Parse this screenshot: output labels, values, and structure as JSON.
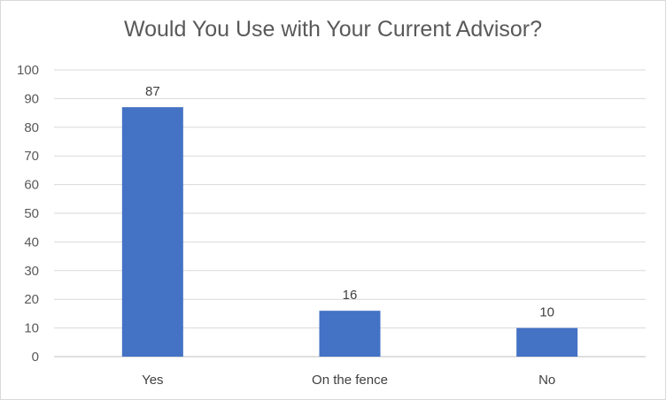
{
  "chart_data": {
    "type": "bar",
    "title": "Would You Use with Your Current Advisor?",
    "categories": [
      "Yes",
      "On the fence",
      "No"
    ],
    "values": [
      87,
      16,
      10
    ],
    "data_labels": [
      "87",
      "16",
      "10"
    ],
    "xlabel": "",
    "ylabel": "",
    "ylim": [
      0,
      100
    ],
    "ytick_step": 10,
    "grid": true,
    "legend": "none",
    "bar_color": "#4472c4",
    "grid_color": "#d9d9d9"
  }
}
